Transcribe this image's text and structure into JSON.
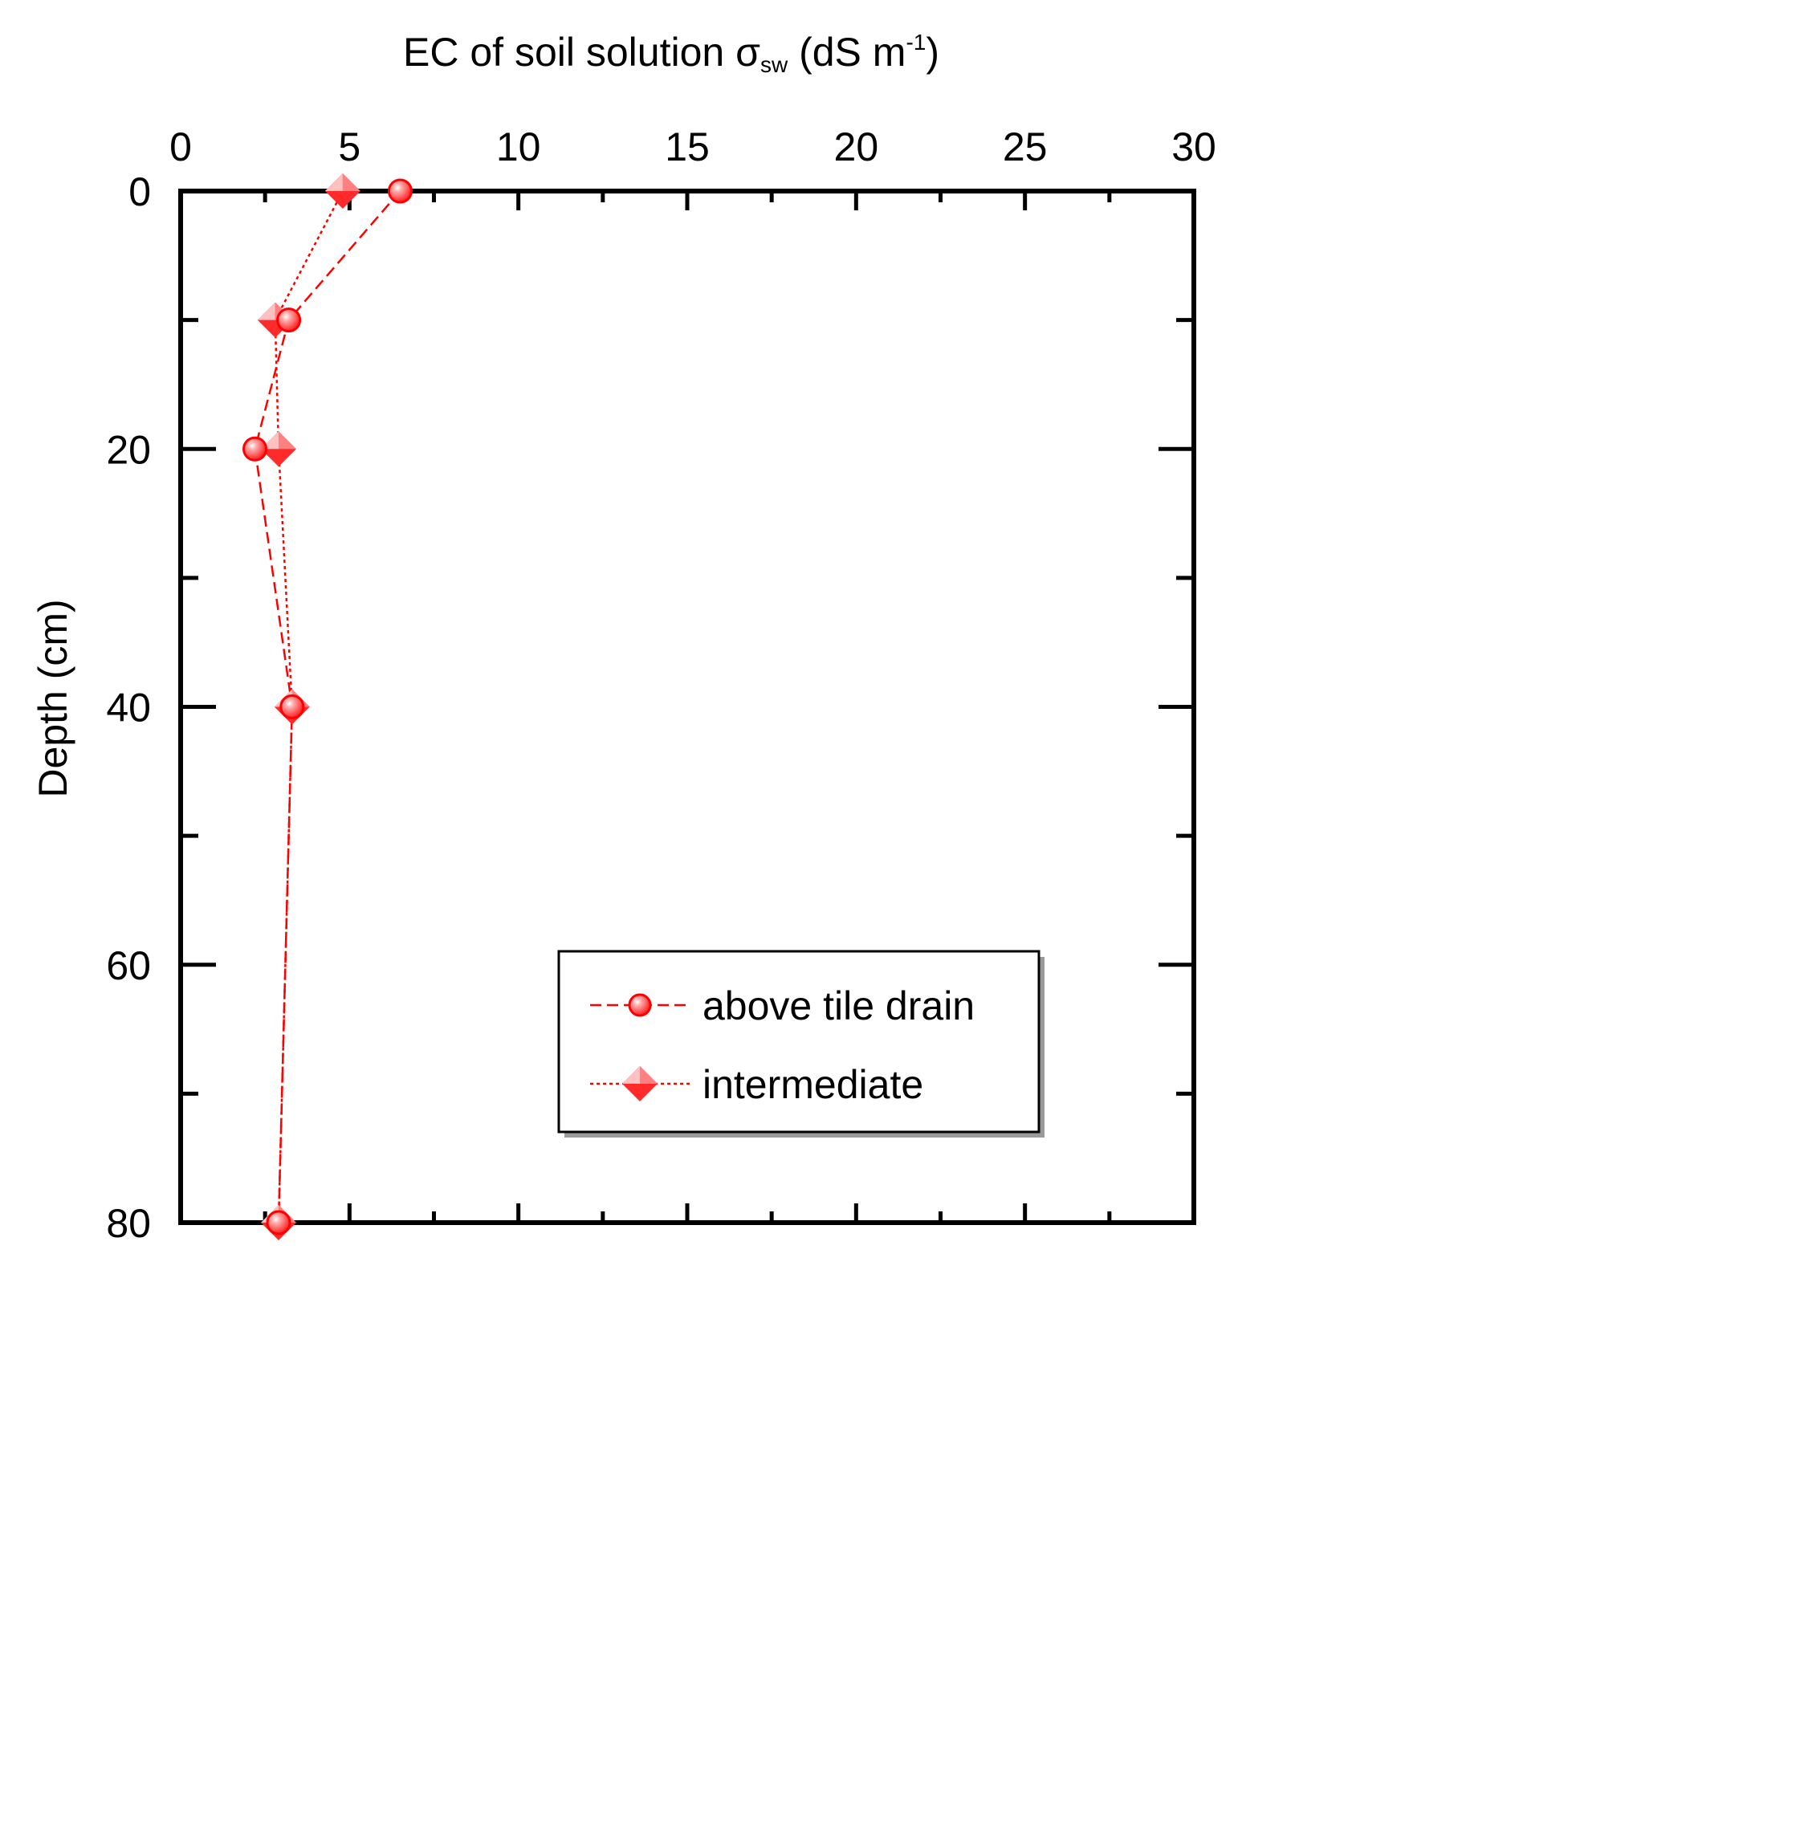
{
  "chart_data": {
    "type": "line",
    "title": "",
    "xlabel": {
      "main": "EC of soil solution σ",
      "subscript": "sw",
      "unit_open": " (dS m",
      "superscript": "-1",
      "unit_close": ")"
    },
    "ylabel": "Depth (cm)",
    "xlim": [
      0,
      30
    ],
    "ylim": [
      0,
      80
    ],
    "y_inverted": true,
    "x_axis_position": "top",
    "x_ticks": [
      "0",
      "5",
      "10",
      "15",
      "20",
      "25",
      "30"
    ],
    "y_ticks": [
      "0",
      "20",
      "40",
      "60",
      "80"
    ],
    "minor_ticks": true,
    "grid": false,
    "legend_position": "bottom-right",
    "colors": {
      "series": "#ff0000",
      "marker_fill": "#ff3333",
      "marker_highlight": "#ffc0c0",
      "frame": "#000000",
      "legend_shadow": "#9a9a9a"
    },
    "series": [
      {
        "name": "above tile drain",
        "marker": "circle",
        "line_style": "dashed",
        "points": [
          {
            "x": 6.5,
            "y": 0
          },
          {
            "x": 3.2,
            "y": 10
          },
          {
            "x": 2.2,
            "y": 20
          },
          {
            "x": 3.3,
            "y": 40
          },
          {
            "x": 2.9,
            "y": 80
          }
        ]
      },
      {
        "name": "intermediate",
        "marker": "diamond",
        "line_style": "dotted",
        "points": [
          {
            "x": 4.8,
            "y": 0
          },
          {
            "x": 2.8,
            "y": 10
          },
          {
            "x": 2.9,
            "y": 20
          },
          {
            "x": 3.3,
            "y": 40
          },
          {
            "x": 2.9,
            "y": 80
          }
        ]
      }
    ]
  }
}
